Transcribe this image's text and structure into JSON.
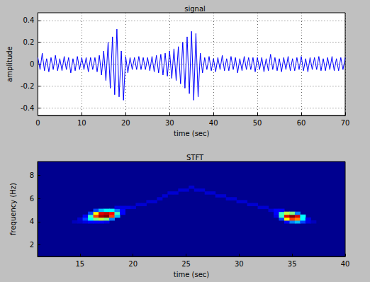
{
  "chart_data": [
    {
      "type": "line",
      "title": "signal",
      "x_label": "time (sec)",
      "y_label": "amplitude",
      "color": "#0000ff",
      "grid": true,
      "xlim": [
        0,
        70
      ],
      "xticks": [
        0,
        10,
        20,
        30,
        40,
        50,
        60,
        70
      ],
      "ylim": [
        -0.47,
        0.47
      ],
      "yticks": [
        -0.4,
        -0.2,
        0,
        0.2,
        0.4
      ],
      "x": [
        0,
        0.5,
        1,
        1.5,
        2,
        2.5,
        3,
        3.5,
        4,
        4.5,
        5,
        5.5,
        6,
        6.5,
        7,
        7.5,
        8,
        8.5,
        9,
        9.5,
        10,
        10.5,
        11,
        11.5,
        12,
        12.5,
        13,
        13.5,
        14,
        14.5,
        15,
        15.5,
        16,
        16.5,
        17,
        17.5,
        18,
        18.5,
        19,
        19.5,
        20,
        20.5,
        21,
        21.5,
        22,
        22.5,
        23,
        23.5,
        24,
        24.5,
        25,
        25.5,
        26,
        26.5,
        27,
        27.5,
        28,
        28.5,
        29,
        29.5,
        30,
        30.5,
        31,
        31.5,
        32,
        32.5,
        33,
        33.5,
        34,
        34.5,
        35,
        35.5,
        36,
        36.5,
        37,
        37.5,
        38,
        38.5,
        39,
        39.5,
        40,
        40.5,
        41,
        41.5,
        42,
        42.5,
        43,
        43.5,
        44,
        44.5,
        45,
        45.5,
        46,
        46.5,
        47,
        47.5,
        48,
        48.5,
        49,
        49.5,
        50,
        50.5,
        51,
        51.5,
        52,
        52.5,
        53,
        53.5,
        54,
        54.5,
        55,
        55.5,
        56,
        56.5,
        57,
        57.5,
        58,
        58.5,
        59,
        59.5,
        60,
        60.5,
        61,
        61.5,
        62,
        62.5,
        63,
        63.5,
        64,
        64.5,
        65,
        65.5,
        66,
        66.5,
        67,
        67.5,
        68,
        68.5,
        69,
        69.5,
        70
      ],
      "values": [
        0.06,
        -0.05,
        0.1,
        -0.06,
        0.05,
        -0.07,
        0.06,
        -0.05,
        0.08,
        -0.06,
        0.05,
        -0.06,
        0.07,
        -0.05,
        0.06,
        -0.08,
        0.05,
        -0.06,
        0.07,
        -0.05,
        0.06,
        -0.05,
        0.06,
        -0.07,
        0.06,
        -0.05,
        0.06,
        -0.07,
        0.08,
        -0.1,
        0.12,
        -0.15,
        0.2,
        -0.22,
        0.25,
        -0.28,
        0.32,
        -0.3,
        0.12,
        -0.33,
        0.07,
        -0.08,
        0.06,
        -0.05,
        0.06,
        -0.05,
        0.07,
        -0.05,
        0.06,
        -0.05,
        0.06,
        -0.06,
        0.07,
        -0.07,
        0.08,
        -0.08,
        0.09,
        -0.1,
        0.1,
        -0.11,
        0.12,
        -0.13,
        0.14,
        -0.15,
        0.16,
        -0.18,
        0.2,
        -0.22,
        0.25,
        -0.27,
        0.3,
        -0.33,
        0.28,
        -0.3,
        0.1,
        -0.08,
        0.06,
        -0.05,
        0.07,
        -0.06,
        0.05,
        -0.07,
        0.06,
        -0.05,
        0.08,
        -0.06,
        0.05,
        -0.06,
        0.07,
        -0.05,
        0.06,
        -0.08,
        0.05,
        -0.06,
        0.07,
        -0.05,
        0.06,
        -0.05,
        0.06,
        -0.07,
        0.06,
        -0.05,
        0.06,
        -0.07,
        0.05,
        -0.06,
        0.09,
        -0.05,
        0.06,
        -0.06,
        0.05,
        -0.07,
        0.06,
        -0.05,
        0.07,
        -0.06,
        0.05,
        -0.06,
        0.06,
        -0.05,
        0.07,
        -0.06,
        0.05,
        -0.07,
        0.06,
        -0.05,
        0.06,
        -0.05,
        0.07,
        -0.06,
        0.05,
        -0.06,
        0.06,
        -0.05,
        0.07,
        -0.06,
        0.05,
        -0.06,
        0.06,
        -0.05,
        0.06
      ]
    },
    {
      "type": "heatmap",
      "title": "STFT",
      "x_label": "time (sec)",
      "y_label": "frequency (Hz)",
      "grid": false,
      "xlim": [
        11,
        40
      ],
      "xticks": [
        15,
        20,
        25,
        30,
        35,
        40
      ],
      "ylim": [
        1,
        9.2
      ],
      "yticks": [
        2,
        4,
        6,
        8
      ],
      "color_range": [
        0,
        1
      ],
      "cells": [
        [
          14.5,
          4,
          0.08
        ],
        [
          15,
          4,
          0.1
        ],
        [
          15,
          4.25,
          0.12
        ],
        [
          15.5,
          4,
          0.15
        ],
        [
          15.5,
          4.25,
          0.25
        ],
        [
          15.5,
          4.5,
          0.2
        ],
        [
          16,
          4,
          0.2
        ],
        [
          16,
          4.25,
          0.4
        ],
        [
          16,
          4.5,
          0.45
        ],
        [
          16,
          4.75,
          0.25
        ],
        [
          16.5,
          4,
          0.2
        ],
        [
          16.5,
          4.25,
          0.5
        ],
        [
          16.5,
          4.5,
          0.75
        ],
        [
          16.5,
          4.75,
          0.6
        ],
        [
          16.5,
          5,
          0.25
        ],
        [
          17,
          4,
          0.2
        ],
        [
          17,
          4.25,
          0.55
        ],
        [
          17,
          4.5,
          0.95
        ],
        [
          17,
          4.75,
          0.85
        ],
        [
          17,
          5,
          0.35
        ],
        [
          17.5,
          4,
          0.15
        ],
        [
          17.5,
          4.25,
          0.5
        ],
        [
          17.5,
          4.5,
          1
        ],
        [
          17.5,
          4.75,
          0.9
        ],
        [
          17.5,
          5,
          0.4
        ],
        [
          18,
          4.25,
          0.3
        ],
        [
          18,
          4.5,
          0.75
        ],
        [
          18,
          4.75,
          0.8
        ],
        [
          18,
          5,
          0.4
        ],
        [
          18.5,
          4.5,
          0.35
        ],
        [
          18.5,
          4.75,
          0.45
        ],
        [
          18.5,
          5,
          0.3
        ],
        [
          18.5,
          5.25,
          0.15
        ],
        [
          19,
          4.75,
          0.2
        ],
        [
          19,
          5,
          0.2
        ],
        [
          19,
          5.25,
          0.15
        ],
        [
          19.5,
          5.25,
          0.15
        ],
        [
          20,
          5.25,
          0.12
        ],
        [
          20.5,
          5.5,
          0.12
        ],
        [
          21,
          5.5,
          0.12
        ],
        [
          21.5,
          5.75,
          0.12
        ],
        [
          22,
          5.75,
          0.12
        ],
        [
          22.5,
          6,
          0.12
        ],
        [
          23,
          6.25,
          0.12
        ],
        [
          23.5,
          6.5,
          0.12
        ],
        [
          24,
          6.5,
          0.12
        ],
        [
          24.5,
          6.75,
          0.12
        ],
        [
          25,
          6.75,
          0.12
        ],
        [
          25.5,
          7,
          0.12
        ],
        [
          26,
          6.75,
          0.12
        ],
        [
          26.5,
          6.75,
          0.12
        ],
        [
          27,
          6.5,
          0.12
        ],
        [
          27.5,
          6.5,
          0.12
        ],
        [
          28,
          6.25,
          0.12
        ],
        [
          28.5,
          6.25,
          0.12
        ],
        [
          29,
          6,
          0.12
        ],
        [
          29.5,
          6,
          0.12
        ],
        [
          30,
          5.75,
          0.12
        ],
        [
          30.5,
          5.75,
          0.12
        ],
        [
          31,
          5.5,
          0.12
        ],
        [
          31.5,
          5.5,
          0.12
        ],
        [
          32,
          5.25,
          0.12
        ],
        [
          32.5,
          5.25,
          0.12
        ],
        [
          33,
          5,
          0.12
        ],
        [
          33.5,
          4.5,
          0.15
        ],
        [
          33.5,
          4.75,
          0.2
        ],
        [
          33.5,
          5,
          0.2
        ],
        [
          34,
          4.25,
          0.25
        ],
        [
          34,
          4.5,
          0.45
        ],
        [
          34,
          4.75,
          0.45
        ],
        [
          34,
          5,
          0.2
        ],
        [
          34.5,
          4,
          0.2
        ],
        [
          34.5,
          4.25,
          0.6
        ],
        [
          34.5,
          4.5,
          0.85
        ],
        [
          34.5,
          4.75,
          0.55
        ],
        [
          35,
          4,
          0.3
        ],
        [
          35,
          4.25,
          0.75
        ],
        [
          35,
          4.5,
          1
        ],
        [
          35,
          4.75,
          0.5
        ],
        [
          35.5,
          4,
          0.35
        ],
        [
          35.5,
          4.25,
          0.7
        ],
        [
          35.5,
          4.5,
          0.85
        ],
        [
          35.5,
          4.75,
          0.3
        ],
        [
          36,
          4,
          0.25
        ],
        [
          36,
          4.25,
          0.4
        ],
        [
          36,
          4.5,
          0.4
        ],
        [
          36.5,
          4,
          0.15
        ],
        [
          36.5,
          4.25,
          0.15
        ],
        [
          37,
          4,
          0.08
        ]
      ]
    }
  ]
}
